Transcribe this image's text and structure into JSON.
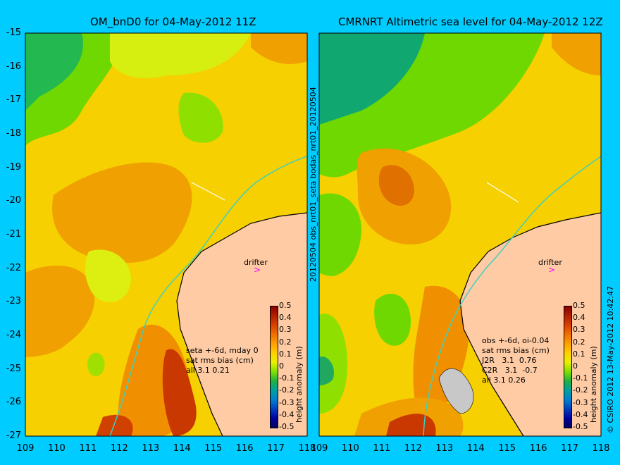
{
  "chart_data": [
    {
      "type": "heatmap",
      "title": "OM_bnD0 for 04-May-2012 11Z",
      "xlim": [
        109,
        118
      ],
      "ylim": [
        -27,
        -15
      ],
      "x_ticks": [
        "109",
        "110",
        "111",
        "112",
        "113",
        "114",
        "115",
        "116",
        "117",
        "118"
      ],
      "y_ticks": [
        "-15",
        "-16",
        "-17",
        "-18",
        "-19",
        "-20",
        "-21",
        "-22",
        "-23",
        "-24",
        "-25",
        "-26",
        "-27"
      ],
      "annotations": {
        "drifter": "drifter",
        "stats": [
          "seta +-6d, mday 0",
          "sat rms bias (cm)",
          "all 3.1 0.21"
        ]
      }
    },
    {
      "type": "heatmap",
      "title": "CMRNRT Altimetric sea level  for 04-May-2012 12Z",
      "xlim": [
        109,
        118
      ],
      "ylim": [
        -27,
        -15
      ],
      "x_ticks": [
        "109",
        "110",
        "111",
        "112",
        "113",
        "114",
        "115",
        "116",
        "117",
        "118"
      ],
      "y_ticks": [
        "-15",
        "-16",
        "-17",
        "-18",
        "-19",
        "-20",
        "-21",
        "-22",
        "-23",
        "-24",
        "-25",
        "-26",
        "-27"
      ],
      "annotations": {
        "drifter": "drifter",
        "stats": [
          "obs +-6d, oi-0.04",
          "sat rms bias (cm)",
          "J2R   3.1  0.76",
          "C2R   3.1  -0.7",
          "all 3.1 0.26"
        ]
      }
    }
  ],
  "colorbar": {
    "label": "height anomaly (m)",
    "range": [
      -0.5,
      0.5
    ],
    "ticks": [
      "0.5",
      "0.4",
      "0.3",
      "0.2",
      "0.1",
      "0",
      "-0.1",
      "-0.2",
      "-0.3",
      "-0.4",
      "-0.5"
    ],
    "colors": [
      "#8b0000",
      "#b22000",
      "#d84000",
      "#f07000",
      "#ffa000",
      "#ffd000",
      "#e8f000",
      "#80e000",
      "#20b040",
      "#00a0a0",
      "#0080d0",
      "#0040c0",
      "#0000a0",
      "#000060"
    ]
  },
  "side_text": {
    "middle": "20120504 obs_nrt01_seta    bodas_nrt01_20120504",
    "right": "© CSIRO 2012  13-May-2012 10:42:47"
  },
  "colors": {
    "background": "#00ccff",
    "land": "#ffcba4",
    "coast_current": "#40d0c0"
  }
}
